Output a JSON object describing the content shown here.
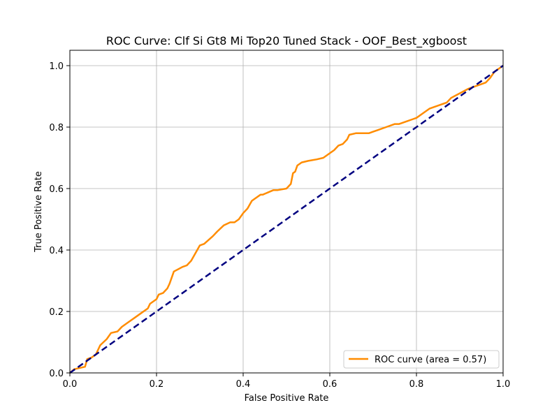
{
  "chart_data": {
    "type": "line",
    "title": "ROC Curve: Clf Si Gt8 Mi Top20 Tuned Stack - OOF_Best_xgboost",
    "xlabel": "False Positive Rate",
    "ylabel": "True Positive Rate",
    "xlim": [
      0.0,
      1.0
    ],
    "ylim": [
      0.0,
      1.05
    ],
    "grid": true,
    "legend_position": "lower-right",
    "x_ticks": [
      "0.0",
      "0.2",
      "0.4",
      "0.6",
      "0.8",
      "1.0"
    ],
    "y_ticks": [
      "0.0",
      "0.2",
      "0.4",
      "0.6",
      "0.8",
      "1.0"
    ],
    "series": [
      {
        "name": "ROC curve (area = 0.57)",
        "color": "#ff8c00",
        "style": "solid",
        "x": [
          0.0,
          0.01,
          0.035,
          0.04,
          0.05,
          0.06,
          0.07,
          0.085,
          0.095,
          0.11,
          0.12,
          0.135,
          0.15,
          0.165,
          0.18,
          0.185,
          0.2,
          0.205,
          0.215,
          0.225,
          0.23,
          0.24,
          0.26,
          0.27,
          0.28,
          0.29,
          0.3,
          0.31,
          0.33,
          0.34,
          0.355,
          0.37,
          0.38,
          0.39,
          0.4,
          0.41,
          0.42,
          0.425,
          0.44,
          0.445,
          0.47,
          0.48,
          0.5,
          0.51,
          0.515,
          0.52,
          0.525,
          0.535,
          0.55,
          0.57,
          0.585,
          0.6,
          0.61,
          0.62,
          0.63,
          0.64,
          0.645,
          0.66,
          0.69,
          0.7,
          0.71,
          0.73,
          0.75,
          0.76,
          0.78,
          0.79,
          0.8,
          0.82,
          0.83,
          0.85,
          0.87,
          0.88,
          0.9,
          0.92,
          0.93,
          0.95,
          0.96,
          0.97,
          0.98,
          0.99,
          1.0
        ],
        "y": [
          0.0,
          0.012,
          0.02,
          0.045,
          0.05,
          0.06,
          0.09,
          0.11,
          0.13,
          0.135,
          0.15,
          0.165,
          0.18,
          0.195,
          0.21,
          0.225,
          0.24,
          0.255,
          0.26,
          0.275,
          0.29,
          0.33,
          0.345,
          0.35,
          0.365,
          0.39,
          0.415,
          0.42,
          0.445,
          0.46,
          0.48,
          0.49,
          0.49,
          0.5,
          0.52,
          0.535,
          0.56,
          0.565,
          0.58,
          0.58,
          0.595,
          0.595,
          0.6,
          0.615,
          0.65,
          0.655,
          0.675,
          0.685,
          0.69,
          0.695,
          0.7,
          0.715,
          0.725,
          0.74,
          0.745,
          0.76,
          0.775,
          0.78,
          0.78,
          0.785,
          0.79,
          0.8,
          0.81,
          0.81,
          0.82,
          0.825,
          0.83,
          0.85,
          0.86,
          0.87,
          0.88,
          0.895,
          0.91,
          0.925,
          0.93,
          0.94,
          0.945,
          0.96,
          0.98,
          0.99,
          1.0
        ]
      },
      {
        "color": "#000080",
        "style": "dashed",
        "x": [
          0.0,
          1.0
        ],
        "y": [
          0.0,
          1.0
        ]
      }
    ]
  }
}
